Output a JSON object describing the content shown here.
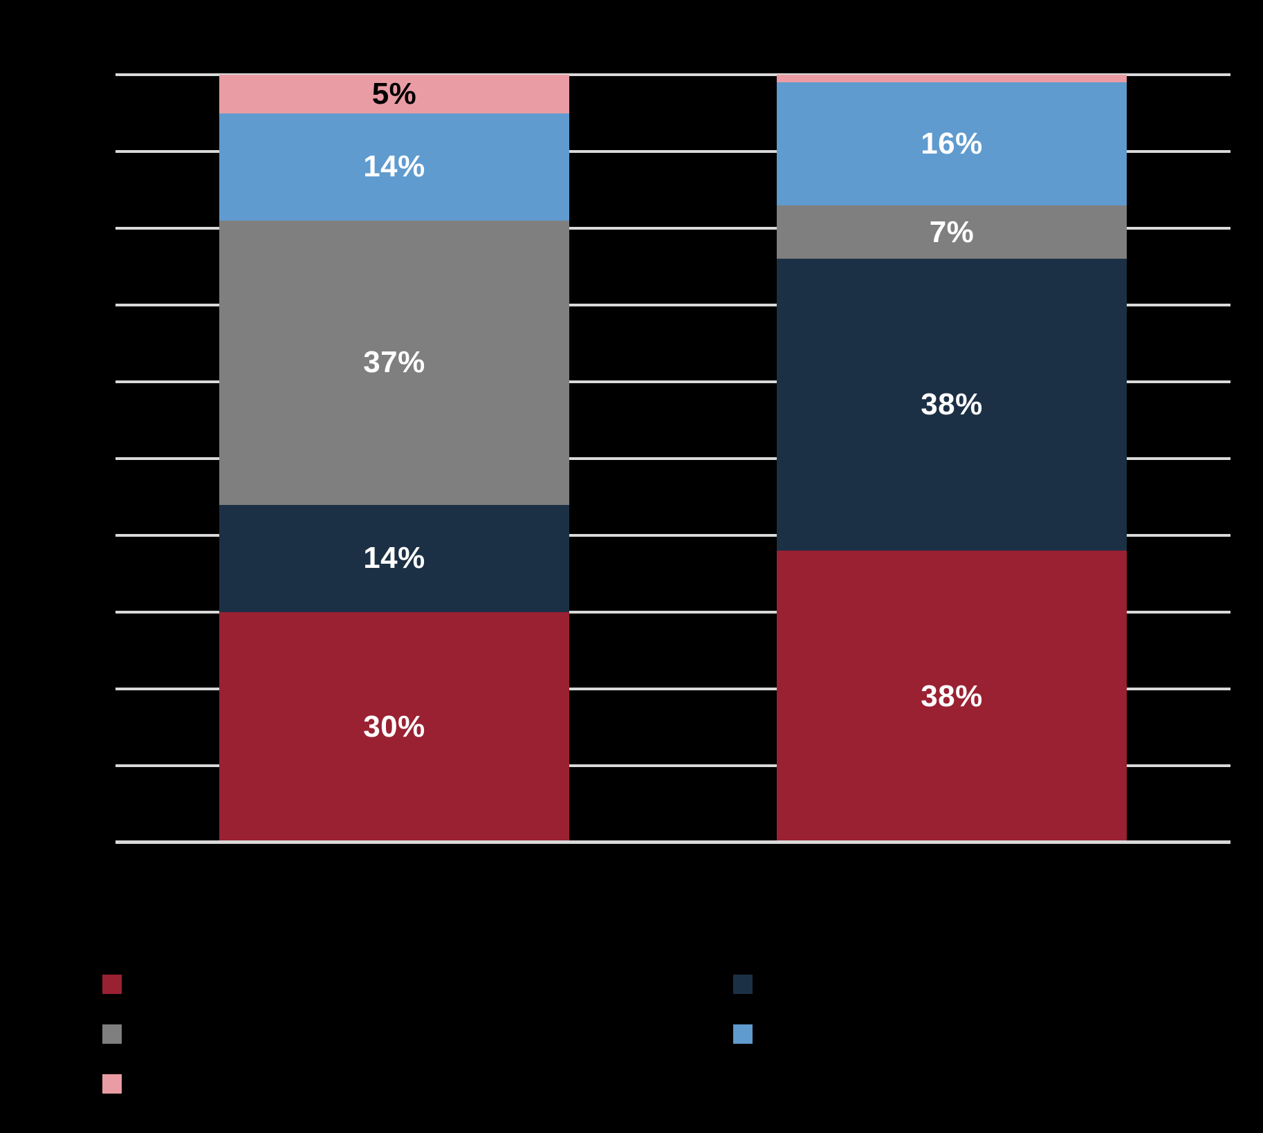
{
  "canvas": {
    "background": "#000000",
    "gridline_color": "#D9D9D9",
    "axis_line_color": "#D9D9D9"
  },
  "chart_data": {
    "type": "bar",
    "stacked": true,
    "orientation": "vertical",
    "title": "",
    "xlabel": "",
    "ylabel": "",
    "ylim": [
      0,
      100
    ],
    "gridline_interval_pct": 10,
    "grid": "horizontal",
    "categories": [
      "",
      ""
    ],
    "series": [
      {
        "name": "crimson",
        "color": "#9A2132",
        "values": [
          30,
          38
        ],
        "labels": [
          "30%",
          "38%"
        ],
        "label_color": "#FFFFFF"
      },
      {
        "name": "dark-navy",
        "color": "#1C3045",
        "values": [
          14,
          38
        ],
        "labels": [
          "14%",
          "38%"
        ],
        "label_color": "#FFFFFF"
      },
      {
        "name": "gray",
        "color": "#7F7F7F",
        "values": [
          37,
          7
        ],
        "labels": [
          "37%",
          "7%"
        ],
        "label_color": "#FFFFFF"
      },
      {
        "name": "light-blue",
        "color": "#5F9BCE",
        "values": [
          14,
          16
        ],
        "labels": [
          "14%",
          "16%"
        ],
        "label_color": "#FFFFFF"
      },
      {
        "name": "pink",
        "color": "#E99CA4",
        "values": [
          5,
          1
        ],
        "labels": [
          "5%",
          ""
        ],
        "label_color": "#000000"
      }
    ],
    "legend_position": "bottom",
    "legend": {
      "left_column": [
        "crimson",
        "gray",
        "pink"
      ],
      "right_column": [
        "dark-navy",
        "light-blue"
      ]
    }
  }
}
